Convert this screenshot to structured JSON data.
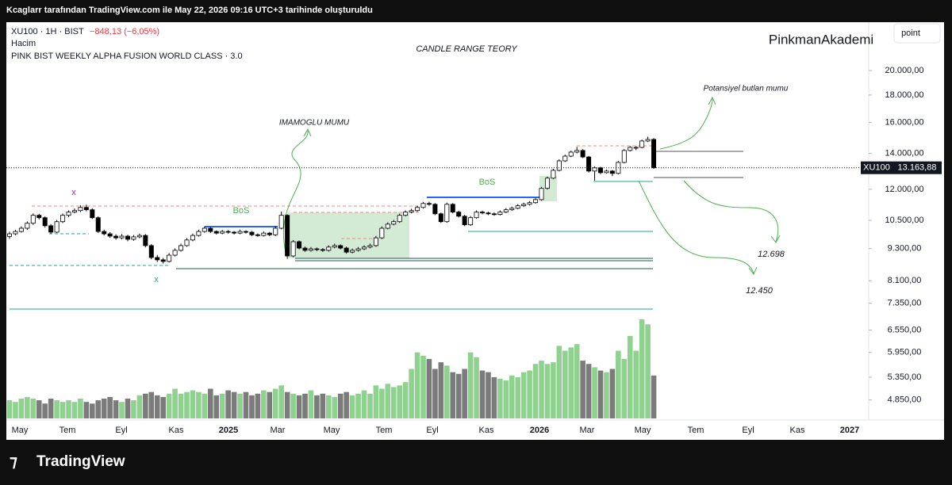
{
  "header": {
    "caption": "Kcaglarr tarafından TradingView.com ile May 22, 2026 09:16 UTC+3 tarihinde oluşturuldu"
  },
  "legend": {
    "symbol": "XU100 · 1H · BIST",
    "change": "−848,13 (−6,05%)",
    "volume_label": "Hacim",
    "indicator": "PINK BIST WEEKLY ALPHA FUSION WORLD CLASS · 3.0"
  },
  "watermark": "PinkmanAkademi",
  "button": "point",
  "footer_logo": "TradingView",
  "annotations": {
    "center_title": "CANDLE RANGE TEORY",
    "event": "IMAMOGLU MUMU",
    "potential": "Potansiyel butlan mumu",
    "bos1": "BoS",
    "bos2": "BoS",
    "target1": "12.698",
    "target2": "12.450",
    "mark1": "x",
    "mark2": "x"
  },
  "chart_data": {
    "type": "candlestick",
    "log_scale": true,
    "up_color": "#ffffff",
    "down_color": "#000000",
    "volume_up_color": "#8fd18f",
    "volume_down_color": "#7b7b7b",
    "ylim": [
      4450,
      24450
    ],
    "yticks": [
      {
        "value": 20000,
        "label": "20.000,00"
      },
      {
        "value": 18000,
        "label": "18.000,00"
      },
      {
        "value": 16000,
        "label": "16.000,00"
      },
      {
        "value": 14000,
        "label": "14.000,00"
      },
      {
        "value": 12000,
        "label": "12.000,00"
      },
      {
        "value": 10500,
        "label": "10.500,00"
      },
      {
        "value": 9300,
        "label": "9.300,00"
      },
      {
        "value": 8100,
        "label": "8.100,00"
      },
      {
        "value": 7350,
        "label": "7.350,00"
      },
      {
        "value": 6550,
        "label": "6.550,00"
      },
      {
        "value": 5950,
        "label": "5.950,00"
      },
      {
        "value": 5350,
        "label": "5.350,00"
      },
      {
        "value": 4850,
        "label": "4.850,00"
      }
    ],
    "last_price": {
      "value": 13163.88,
      "label": "13.163,88"
    },
    "symbol_tag": "XU100",
    "time_labels": [
      "May",
      "Tem",
      "Eyl",
      "Kas",
      "2025",
      "Mar",
      "May",
      "Tem",
      "Eyl",
      "Kas",
      "2026",
      "Mar",
      "May",
      "Tem",
      "Eyl",
      "Kas",
      "2027"
    ],
    "ohlc": [
      [
        9800,
        10000,
        9700,
        9910
      ],
      [
        9910,
        10080,
        9850,
        10010
      ],
      [
        10010,
        10230,
        9960,
        10150
      ],
      [
        10150,
        10450,
        10080,
        10370
      ],
      [
        10370,
        10820,
        10300,
        10730
      ],
      [
        10730,
        10800,
        10540,
        10620
      ],
      [
        10620,
        10680,
        10180,
        10260
      ],
      [
        10260,
        10330,
        9900,
        9980
      ],
      [
        9980,
        10520,
        9940,
        10440
      ],
      [
        10440,
        10810,
        10380,
        10730
      ],
      [
        10730,
        10960,
        10650,
        10880
      ],
      [
        10880,
        11050,
        10820,
        10950
      ],
      [
        10950,
        11200,
        10880,
        11100
      ],
      [
        11100,
        11230,
        10920,
        10990
      ],
      [
        10990,
        11060,
        10560,
        10620
      ],
      [
        10620,
        10680,
        9950,
        10010
      ],
      [
        10010,
        10090,
        9840,
        9910
      ],
      [
        9910,
        9980,
        9740,
        9810
      ],
      [
        9810,
        9890,
        9660,
        9740
      ],
      [
        9740,
        9900,
        9680,
        9810
      ],
      [
        9810,
        9870,
        9600,
        9680
      ],
      [
        9680,
        9860,
        9620,
        9780
      ],
      [
        9780,
        9920,
        9720,
        9840
      ],
      [
        9840,
        9900,
        9350,
        9420
      ],
      [
        9420,
        9480,
        8880,
        8950
      ],
      [
        8950,
        9050,
        8780,
        8860
      ],
      [
        8860,
        8930,
        8720,
        8800
      ],
      [
        8800,
        9120,
        8760,
        9040
      ],
      [
        9040,
        9310,
        8990,
        9230
      ],
      [
        9230,
        9500,
        9180,
        9420
      ],
      [
        9420,
        9730,
        9370,
        9650
      ],
      [
        9650,
        9920,
        9600,
        9840
      ],
      [
        9840,
        10090,
        9790,
        10010
      ],
      [
        10010,
        10230,
        9960,
        10150
      ],
      [
        10150,
        10200,
        9950,
        10010
      ],
      [
        10010,
        10060,
        9880,
        9940
      ],
      [
        9940,
        10080,
        9890,
        10010
      ],
      [
        10010,
        10070,
        9920,
        9980
      ],
      [
        9980,
        10030,
        9880,
        9940
      ],
      [
        9940,
        10090,
        9890,
        10010
      ],
      [
        10010,
        10060,
        9920,
        9980
      ],
      [
        9980,
        10030,
        9810,
        9870
      ],
      [
        9870,
        9930,
        9780,
        9840
      ],
      [
        9840,
        10010,
        9790,
        9940
      ],
      [
        9940,
        9990,
        9810,
        9870
      ],
      [
        9870,
        10230,
        9820,
        10150
      ],
      [
        10150,
        10900,
        10100,
        10730
      ],
      [
        10730,
        10780,
        8900,
        9010
      ],
      [
        9010,
        9650,
        8960,
        9580
      ],
      [
        9580,
        9630,
        9270,
        9320
      ],
      [
        9320,
        9380,
        9170,
        9230
      ],
      [
        9230,
        9360,
        9180,
        9290
      ],
      [
        9290,
        9340,
        9200,
        9260
      ],
      [
        9260,
        9320,
        9170,
        9230
      ],
      [
        9230,
        9430,
        9180,
        9360
      ],
      [
        9360,
        9500,
        9310,
        9420
      ],
      [
        9420,
        9470,
        9270,
        9320
      ],
      [
        9320,
        9380,
        9100,
        9160
      ],
      [
        9160,
        9300,
        9110,
        9230
      ],
      [
        9230,
        9360,
        9180,
        9290
      ],
      [
        9290,
        9430,
        9240,
        9360
      ],
      [
        9360,
        9500,
        9310,
        9420
      ],
      [
        9420,
        9820,
        9370,
        9740
      ],
      [
        9740,
        10230,
        9690,
        10150
      ],
      [
        10150,
        10410,
        10100,
        10330
      ],
      [
        10330,
        10520,
        10280,
        10440
      ],
      [
        10440,
        10810,
        10390,
        10730
      ],
      [
        10730,
        10960,
        10680,
        10880
      ],
      [
        10880,
        11030,
        10820,
        10950
      ],
      [
        10950,
        11180,
        10890,
        11100
      ],
      [
        11100,
        11370,
        11040,
        11290
      ],
      [
        11290,
        11380,
        11180,
        11250
      ],
      [
        11250,
        11310,
        10740,
        10800
      ],
      [
        10800,
        10860,
        10380,
        10440
      ],
      [
        10440,
        11330,
        10390,
        11250
      ],
      [
        11250,
        11310,
        10820,
        10880
      ],
      [
        10880,
        10940,
        10630,
        10690
      ],
      [
        10690,
        10750,
        10240,
        10300
      ],
      [
        10300,
        10700,
        10250,
        10620
      ],
      [
        10620,
        10960,
        10570,
        10880
      ],
      [
        10880,
        10950,
        10780,
        10840
      ],
      [
        10840,
        10900,
        10740,
        10800
      ],
      [
        10800,
        10860,
        10710,
        10770
      ],
      [
        10770,
        10960,
        10720,
        10880
      ],
      [
        10880,
        11070,
        10830,
        10990
      ],
      [
        10990,
        11140,
        10940,
        11060
      ],
      [
        11060,
        11260,
        11010,
        11180
      ],
      [
        11180,
        11330,
        11120,
        11250
      ],
      [
        11250,
        11410,
        11190,
        11330
      ],
      [
        11330,
        11560,
        11280,
        11480
      ],
      [
        11480,
        12130,
        11420,
        12050
      ],
      [
        12050,
        12670,
        11990,
        12590
      ],
      [
        12590,
        13110,
        12530,
        13020
      ],
      [
        13020,
        13650,
        12960,
        13560
      ],
      [
        13560,
        13930,
        13500,
        13840
      ],
      [
        13840,
        14170,
        13780,
        14080
      ],
      [
        14080,
        14400,
        14000,
        14180
      ],
      [
        14180,
        14260,
        13720,
        13790
      ],
      [
        13790,
        13850,
        12900,
        12980
      ],
      [
        12980,
        13240,
        12460,
        13160
      ],
      [
        13160,
        13220,
        12810,
        12890
      ],
      [
        12890,
        13060,
        12830,
        12980
      ],
      [
        12980,
        13040,
        12700,
        12850
      ],
      [
        12850,
        13550,
        12790,
        13470
      ],
      [
        13470,
        14260,
        13410,
        14180
      ],
      [
        14180,
        14450,
        14120,
        14370
      ],
      [
        14370,
        14450,
        14200,
        14370
      ],
      [
        14370,
        14860,
        14310,
        14770
      ],
      [
        14770,
        15050,
        14700,
        14870
      ],
      [
        14870,
        14950,
        13100,
        13163.88
      ]
    ],
    "volume": [
      22,
      20,
      24,
      26,
      24,
      22,
      18,
      24,
      22,
      20,
      22,
      20,
      24,
      20,
      18,
      22,
      24,
      26,
      22,
      20,
      24,
      22,
      28,
      30,
      32,
      28,
      26,
      30,
      36,
      30,
      32,
      34,
      32,
      30,
      36,
      28,
      30,
      34,
      32,
      30,
      32,
      28,
      30,
      34,
      32,
      36,
      40,
      32,
      30,
      28,
      30,
      34,
      28,
      30,
      28,
      26,
      30,
      32,
      28,
      30,
      34,
      30,
      40,
      36,
      42,
      38,
      40,
      44,
      60,
      80,
      76,
      72,
      60,
      68,
      64,
      56,
      54,
      60,
      80,
      74,
      58,
      56,
      50,
      48,
      46,
      52,
      50,
      56,
      58,
      66,
      70,
      66,
      68,
      88,
      82,
      86,
      90,
      70,
      66,
      62,
      58,
      56,
      60,
      82,
      72,
      100,
      82,
      120,
      114,
      52
    ]
  }
}
